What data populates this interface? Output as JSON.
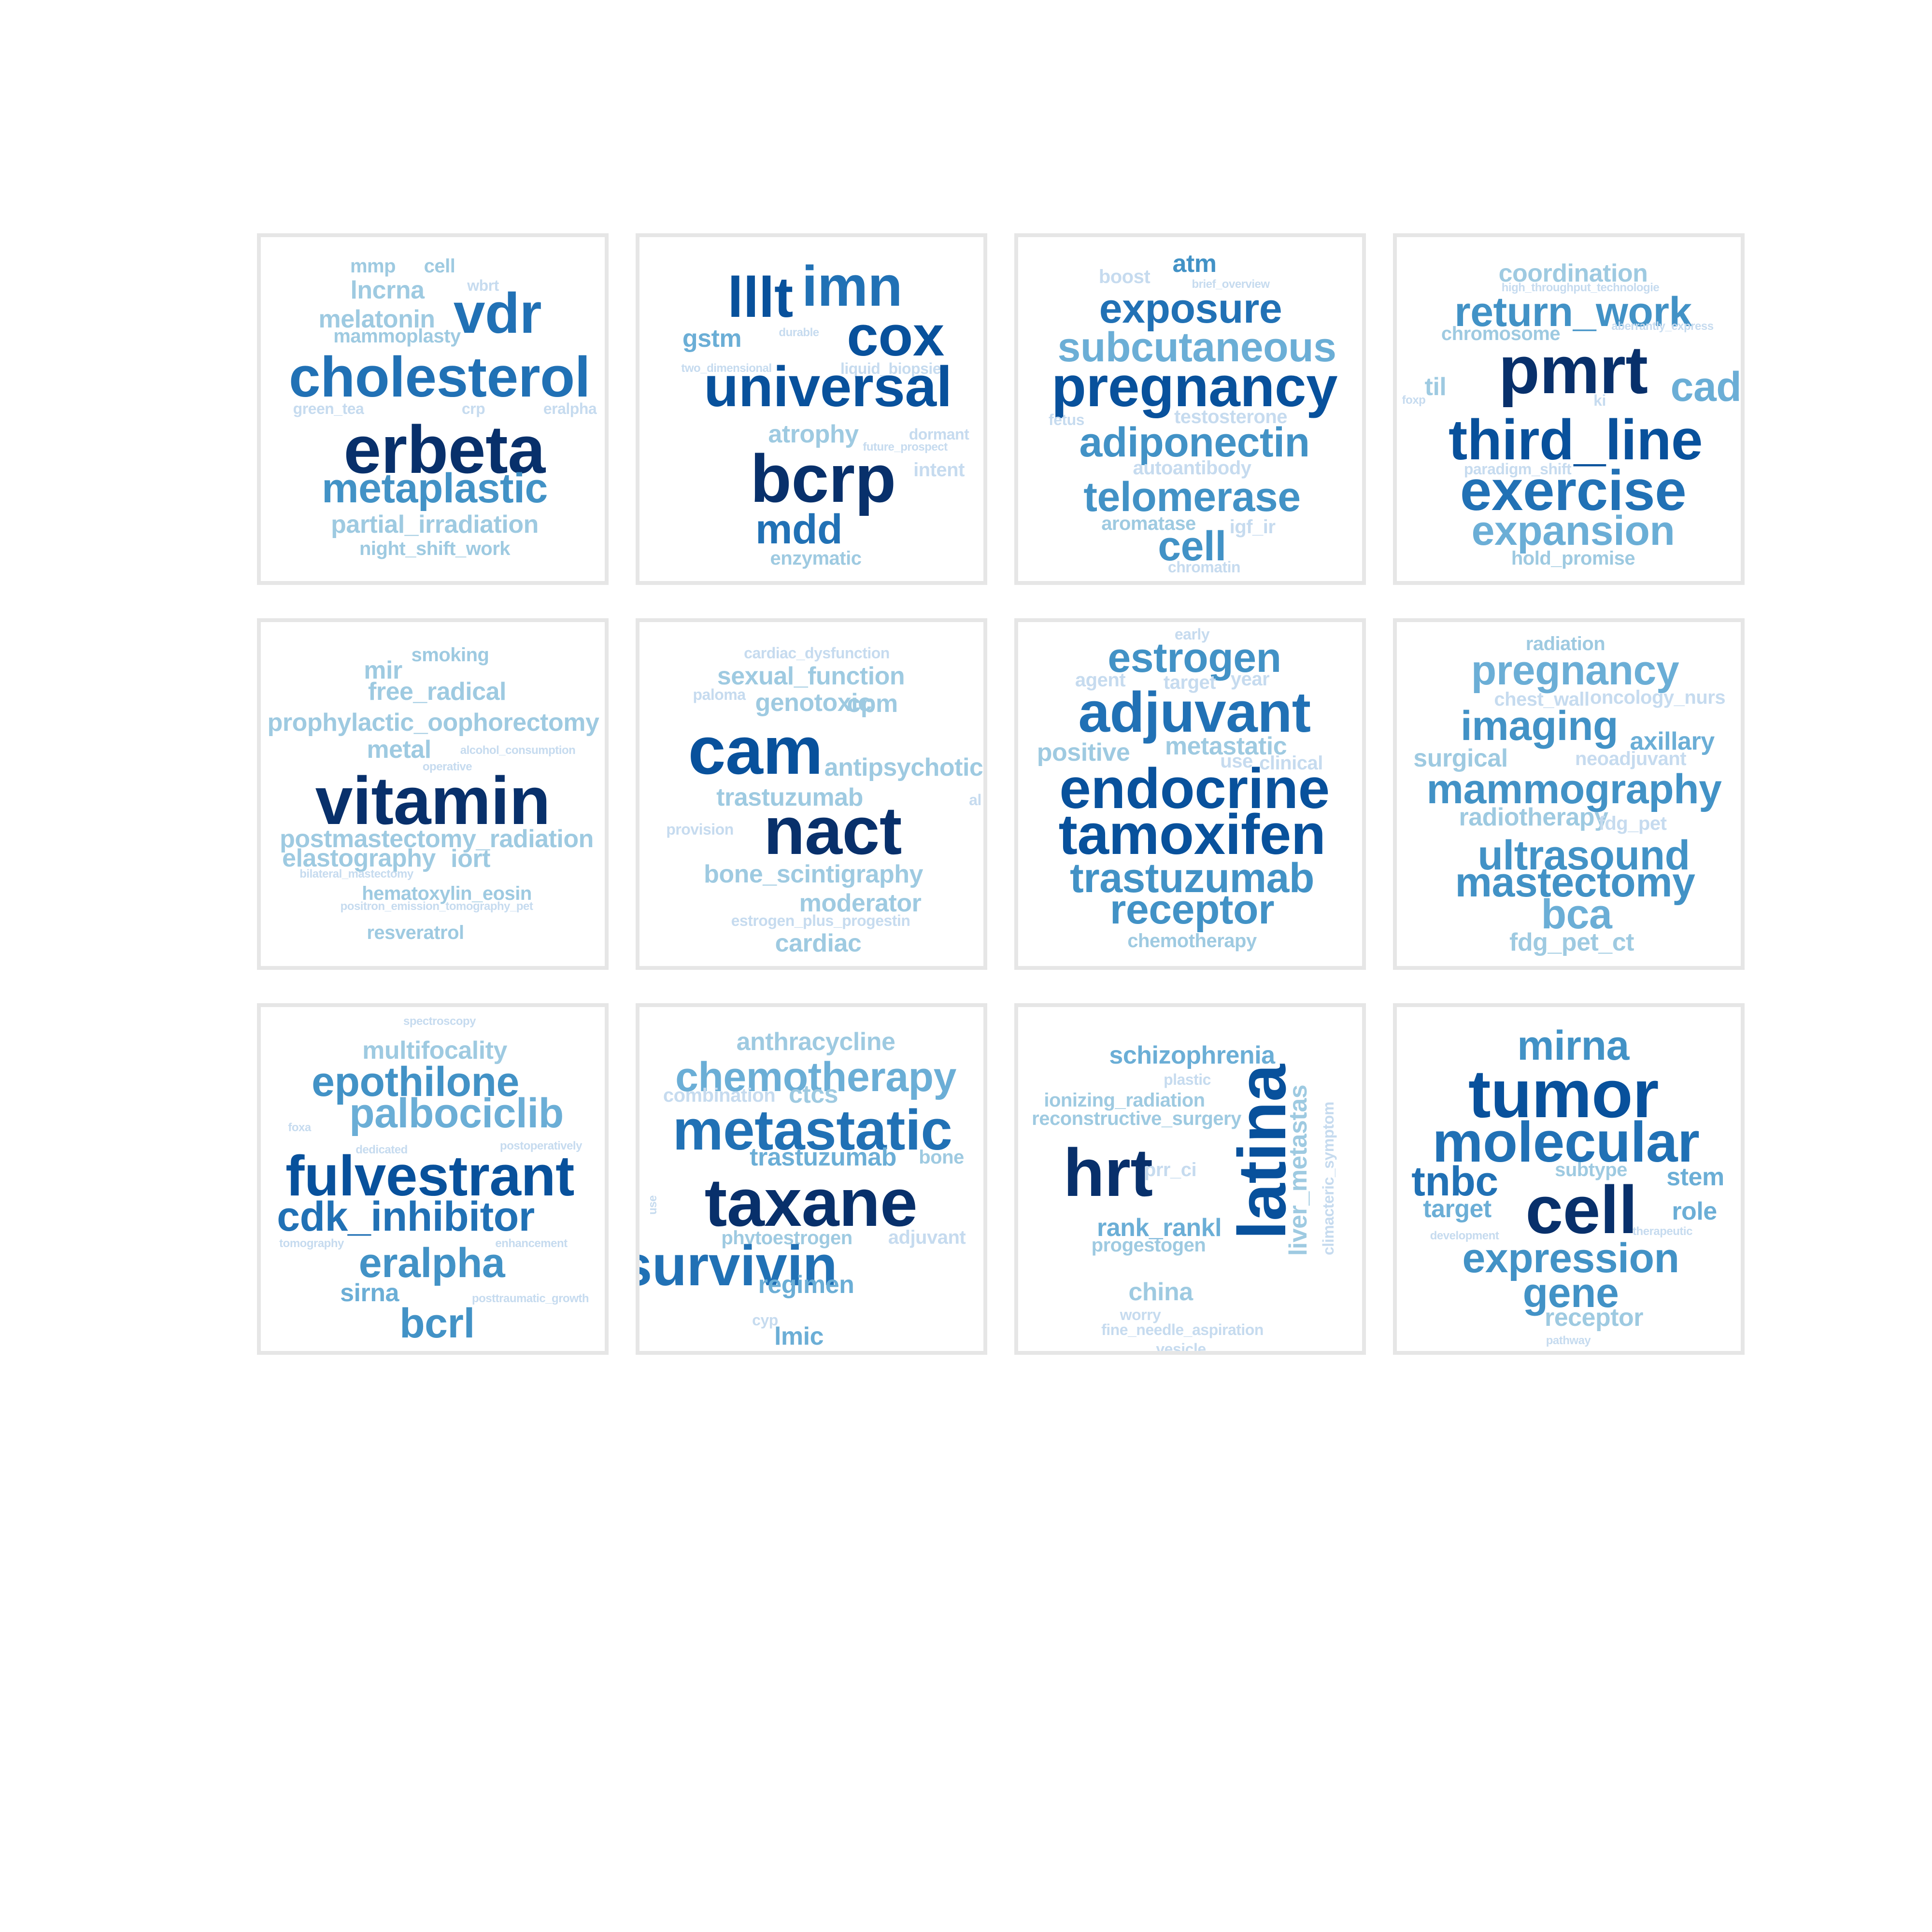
{
  "colors": {
    "c1": "#08306b",
    "c2": "#08519c",
    "c3": "#2171b5",
    "c4": "#4292c6",
    "c5": "#6baed6",
    "c6": "#9ecae1",
    "c7": "#c6dbef"
  },
  "panels": [
    {
      "words": [
        {
          "text": "mmp",
          "color": "c6",
          "size": "s"
        },
        {
          "text": "cell",
          "color": "c6",
          "size": "s"
        },
        {
          "text": "lncrna",
          "color": "c6",
          "size": "m"
        },
        {
          "text": "wbrt",
          "color": "c7",
          "size": "xs"
        },
        {
          "text": "vdr",
          "color": "c3",
          "size": "xl"
        },
        {
          "text": "melatonin",
          "color": "c6",
          "size": "m"
        },
        {
          "text": "mammoplasty",
          "color": "c6",
          "size": "s"
        },
        {
          "text": "cholesterol",
          "color": "c3",
          "size": "xl"
        },
        {
          "text": "green_tea",
          "color": "c7",
          "size": "xs"
        },
        {
          "text": "crp",
          "color": "c7",
          "size": "xs"
        },
        {
          "text": "eralpha",
          "color": "c7",
          "size": "xs"
        },
        {
          "text": "erbeta",
          "color": "c1",
          "size": "xxl"
        },
        {
          "text": "metaplastic",
          "color": "c4",
          "size": "l"
        },
        {
          "text": "partial_irradiation",
          "color": "c6",
          "size": "m"
        },
        {
          "text": "night_shift_work",
          "color": "c6",
          "size": "s"
        }
      ]
    },
    {
      "words": [
        {
          "text": "lllt",
          "color": "c2",
          "size": "xl"
        },
        {
          "text": "imn",
          "color": "c3",
          "size": "xl"
        },
        {
          "text": "cox",
          "color": "c2",
          "size": "xl"
        },
        {
          "text": "gstm",
          "color": "c5",
          "size": "m"
        },
        {
          "text": "durable",
          "color": "c7",
          "size": "xxs"
        },
        {
          "text": "two_dimensional",
          "color": "c7",
          "size": "xxs"
        },
        {
          "text": "liquid_biopsie",
          "color": "c7",
          "size": "xs"
        },
        {
          "text": "universal",
          "color": "c2",
          "size": "xl"
        },
        {
          "text": "atrophy",
          "color": "c6",
          "size": "m"
        },
        {
          "text": "dormant",
          "color": "c7",
          "size": "xs"
        },
        {
          "text": "future_prospect",
          "color": "c7",
          "size": "xxs"
        },
        {
          "text": "intent",
          "color": "c7",
          "size": "s"
        },
        {
          "text": "bcrp",
          "color": "c1",
          "size": "xxl"
        },
        {
          "text": "mdd",
          "color": "c3",
          "size": "l"
        },
        {
          "text": "enzymatic",
          "color": "c6",
          "size": "s"
        }
      ]
    },
    {
      "words": [
        {
          "text": "atm",
          "color": "c4",
          "size": "m"
        },
        {
          "text": "boost",
          "color": "c7",
          "size": "s"
        },
        {
          "text": "brief_overview",
          "color": "c7",
          "size": "xxs"
        },
        {
          "text": "exposure",
          "color": "c3",
          "size": "l"
        },
        {
          "text": "subcutaneous",
          "color": "c5",
          "size": "l"
        },
        {
          "text": "pregnancy",
          "color": "c2",
          "size": "xl"
        },
        {
          "text": "fetus",
          "color": "c7",
          "size": "xs"
        },
        {
          "text": "testosterone",
          "color": "c7",
          "size": "s"
        },
        {
          "text": "adiponectin",
          "color": "c4",
          "size": "l"
        },
        {
          "text": "autoantibody",
          "color": "c7",
          "size": "s"
        },
        {
          "text": "telomerase",
          "color": "c4",
          "size": "l"
        },
        {
          "text": "aromatase",
          "color": "c6",
          "size": "s"
        },
        {
          "text": "igf_ir",
          "color": "c7",
          "size": "s"
        },
        {
          "text": "cell",
          "color": "c4",
          "size": "l"
        },
        {
          "text": "chromatin",
          "color": "c7",
          "size": "xs"
        }
      ]
    },
    {
      "words": [
        {
          "text": "coordination",
          "color": "c6",
          "size": "m"
        },
        {
          "text": "high_throughput_technologie",
          "color": "c7",
          "size": "xxs"
        },
        {
          "text": "return_work",
          "color": "c4",
          "size": "l"
        },
        {
          "text": "chromosome",
          "color": "c6",
          "size": "s"
        },
        {
          "text": "aberrantly_express",
          "color": "c7",
          "size": "xxs"
        },
        {
          "text": "pmrt",
          "color": "c1",
          "size": "xxl"
        },
        {
          "text": "til",
          "color": "c6",
          "size": "m"
        },
        {
          "text": "cad",
          "color": "c5",
          "size": "l"
        },
        {
          "text": "foxp",
          "color": "c7",
          "size": "xxs"
        },
        {
          "text": "ki",
          "color": "c7",
          "size": "xs"
        },
        {
          "text": "third_line",
          "color": "c2",
          "size": "xl"
        },
        {
          "text": "paradigm_shift",
          "color": "c7",
          "size": "xs"
        },
        {
          "text": "exercise",
          "color": "c3",
          "size": "xl"
        },
        {
          "text": "expansion",
          "color": "c5",
          "size": "l"
        },
        {
          "text": "hold_promise",
          "color": "c6",
          "size": "s"
        }
      ]
    },
    {
      "words": [
        {
          "text": "smoking",
          "color": "c6",
          "size": "s"
        },
        {
          "text": "mir",
          "color": "c6",
          "size": "m"
        },
        {
          "text": "free_radical",
          "color": "c6",
          "size": "m"
        },
        {
          "text": "prophylactic_oophorectomy",
          "color": "c6",
          "size": "m"
        },
        {
          "text": "metal",
          "color": "c6",
          "size": "m"
        },
        {
          "text": "alcohol_consumption",
          "color": "c7",
          "size": "xxs"
        },
        {
          "text": "operative",
          "color": "c7",
          "size": "xxs"
        },
        {
          "text": "vitamin",
          "color": "c1",
          "size": "xxl"
        },
        {
          "text": "postmastectomy_radiation",
          "color": "c6",
          "size": "m"
        },
        {
          "text": "elastography",
          "color": "c6",
          "size": "m"
        },
        {
          "text": "iort",
          "color": "c6",
          "size": "m"
        },
        {
          "text": "bilateral_mastectomy",
          "color": "c7",
          "size": "xxs"
        },
        {
          "text": "hematoxylin_eosin",
          "color": "c6",
          "size": "s"
        },
        {
          "text": "positron_emission_tomography_pet",
          "color": "c7",
          "size": "xxs"
        },
        {
          "text": "resveratrol",
          "color": "c6",
          "size": "s"
        }
      ]
    },
    {
      "words": [
        {
          "text": "cardiac_dysfunction",
          "color": "c7",
          "size": "xs"
        },
        {
          "text": "sexual_function",
          "color": "c6",
          "size": "m"
        },
        {
          "text": "paloma",
          "color": "c7",
          "size": "xs"
        },
        {
          "text": "genotoxic",
          "color": "c6",
          "size": "m"
        },
        {
          "text": "cpm",
          "color": "c6",
          "size": "m"
        },
        {
          "text": "cam",
          "color": "c2",
          "size": "xxl"
        },
        {
          "text": "antipsychotic",
          "color": "c6",
          "size": "m"
        },
        {
          "text": "trastuzumab",
          "color": "c6",
          "size": "m"
        },
        {
          "text": "al",
          "color": "c7",
          "size": "xs"
        },
        {
          "text": "provision",
          "color": "c7",
          "size": "xs"
        },
        {
          "text": "nact",
          "color": "c1",
          "size": "xxl"
        },
        {
          "text": "bone_scintigraphy",
          "color": "c6",
          "size": "m"
        },
        {
          "text": "moderator",
          "color": "c6",
          "size": "m"
        },
        {
          "text": "estrogen_plus_progestin",
          "color": "c7",
          "size": "xs"
        },
        {
          "text": "cardiac",
          "color": "c6",
          "size": "m"
        }
      ]
    },
    {
      "words": [
        {
          "text": "early",
          "color": "c7",
          "size": "xs"
        },
        {
          "text": "estrogen",
          "color": "c4",
          "size": "l"
        },
        {
          "text": "agent",
          "color": "c7",
          "size": "s"
        },
        {
          "text": "target",
          "color": "c7",
          "size": "s"
        },
        {
          "text": "year",
          "color": "c7",
          "size": "s"
        },
        {
          "text": "adjuvant",
          "color": "c3",
          "size": "xl"
        },
        {
          "text": "positive",
          "color": "c6",
          "size": "m"
        },
        {
          "text": "metastatic",
          "color": "c6",
          "size": "m"
        },
        {
          "text": "use",
          "color": "c7",
          "size": "s"
        },
        {
          "text": "clinical",
          "color": "c7",
          "size": "s"
        },
        {
          "text": "endocrine",
          "color": "c2",
          "size": "xl"
        },
        {
          "text": "tamoxifen",
          "color": "c2",
          "size": "xl"
        },
        {
          "text": "trastuzumab",
          "color": "c4",
          "size": "l"
        },
        {
          "text": "receptor",
          "color": "c4",
          "size": "l"
        },
        {
          "text": "chemotherapy",
          "color": "c6",
          "size": "s"
        }
      ]
    },
    {
      "words": [
        {
          "text": "radiation",
          "color": "c6",
          "size": "s"
        },
        {
          "text": "pregnancy",
          "color": "c5",
          "size": "l"
        },
        {
          "text": "chest_wall",
          "color": "c7",
          "size": "s"
        },
        {
          "text": "oncology_nurs",
          "color": "c7",
          "size": "s"
        },
        {
          "text": "imaging",
          "color": "c4",
          "size": "l"
        },
        {
          "text": "axillary",
          "color": "c5",
          "size": "m"
        },
        {
          "text": "surgical",
          "color": "c6",
          "size": "m"
        },
        {
          "text": "neoadjuvant",
          "color": "c7",
          "size": "s"
        },
        {
          "text": "mammography",
          "color": "c4",
          "size": "l"
        },
        {
          "text": "radiotherapy",
          "color": "c6",
          "size": "m"
        },
        {
          "text": "fdg_pet",
          "color": "c7",
          "size": "s"
        },
        {
          "text": "ultrasound",
          "color": "c4",
          "size": "l"
        },
        {
          "text": "mastectomy",
          "color": "c4",
          "size": "l"
        },
        {
          "text": "bca",
          "color": "c5",
          "size": "l"
        },
        {
          "text": "fdg_pet_ct",
          "color": "c6",
          "size": "m"
        }
      ]
    },
    {
      "words": [
        {
          "text": "spectroscopy",
          "color": "c7",
          "size": "xxs"
        },
        {
          "text": "multifocality",
          "color": "c6",
          "size": "m"
        },
        {
          "text": "epothilone",
          "color": "c4",
          "size": "l"
        },
        {
          "text": "palbociclib",
          "color": "c5",
          "size": "l"
        },
        {
          "text": "foxa",
          "color": "c7",
          "size": "xxs"
        },
        {
          "text": "dedicated",
          "color": "c7",
          "size": "xxs"
        },
        {
          "text": "postoperatively",
          "color": "c7",
          "size": "xxs"
        },
        {
          "text": "fulvestrant",
          "color": "c2",
          "size": "xl"
        },
        {
          "text": "cdk_inhibitor",
          "color": "c3",
          "size": "l"
        },
        {
          "text": "tomography",
          "color": "c7",
          "size": "xxs"
        },
        {
          "text": "enhancement",
          "color": "c7",
          "size": "xxs"
        },
        {
          "text": "eralpha",
          "color": "c4",
          "size": "l"
        },
        {
          "text": "sirna",
          "color": "c5",
          "size": "m"
        },
        {
          "text": "posttraumatic_growth",
          "color": "c7",
          "size": "xxs"
        },
        {
          "text": "bcrl",
          "color": "c4",
          "size": "l"
        }
      ]
    },
    {
      "words": [
        {
          "text": "anthracycline",
          "color": "c6",
          "size": "m"
        },
        {
          "text": "chemotherapy",
          "color": "c5",
          "size": "l"
        },
        {
          "text": "combination",
          "color": "c7",
          "size": "s"
        },
        {
          "text": "ctcs",
          "color": "c6",
          "size": "m"
        },
        {
          "text": "metastatic",
          "color": "c3",
          "size": "xl"
        },
        {
          "text": "trastuzumab",
          "color": "c5",
          "size": "m"
        },
        {
          "text": "bone",
          "color": "c6",
          "size": "s"
        },
        {
          "text": "use",
          "color": "c7",
          "size": "xxs",
          "vertical": true
        },
        {
          "text": "taxane",
          "color": "c1",
          "size": "xxl"
        },
        {
          "text": "phytoestrogen",
          "color": "c6",
          "size": "s"
        },
        {
          "text": "adjuvant",
          "color": "c7",
          "size": "s"
        },
        {
          "text": "survivin",
          "color": "c3",
          "size": "xl"
        },
        {
          "text": "regimen",
          "color": "c5",
          "size": "m"
        },
        {
          "text": "cyp",
          "color": "c7",
          "size": "xs"
        },
        {
          "text": "lmic",
          "color": "c5",
          "size": "m"
        }
      ]
    },
    {
      "words": [
        {
          "text": "schizophrenia",
          "color": "c5",
          "size": "m"
        },
        {
          "text": "plastic",
          "color": "c7",
          "size": "xs"
        },
        {
          "text": "ionizing_radiation",
          "color": "c6",
          "size": "s"
        },
        {
          "text": "reconstructive_surgery",
          "color": "c6",
          "size": "s"
        },
        {
          "text": "latina",
          "color": "c2",
          "size": "xxl",
          "vertical": true
        },
        {
          "text": "liver_metastas",
          "color": "c6",
          "size": "m",
          "vertical": true
        },
        {
          "text": "climacteric_symptom",
          "color": "c7",
          "size": "xs",
          "vertical": true
        },
        {
          "text": "hrt",
          "color": "c1",
          "size": "xxl"
        },
        {
          "text": "prr_ci",
          "color": "c7",
          "size": "s"
        },
        {
          "text": "rank_rankl",
          "color": "c5",
          "size": "m"
        },
        {
          "text": "progestogen",
          "color": "c6",
          "size": "s"
        },
        {
          "text": "china",
          "color": "c6",
          "size": "m"
        },
        {
          "text": "worry",
          "color": "c7",
          "size": "xs"
        },
        {
          "text": "fine_needle_aspiration",
          "color": "c7",
          "size": "xs"
        },
        {
          "text": "vesicle",
          "color": "c7",
          "size": "xs"
        }
      ]
    },
    {
      "words": [
        {
          "text": "mirna",
          "color": "c4",
          "size": "l"
        },
        {
          "text": "tumor",
          "color": "c2",
          "size": "xxl"
        },
        {
          "text": "molecular",
          "color": "c3",
          "size": "xl"
        },
        {
          "text": "tnbc",
          "color": "c3",
          "size": "l"
        },
        {
          "text": "subtype",
          "color": "c6",
          "size": "s"
        },
        {
          "text": "stem",
          "color": "c5",
          "size": "m"
        },
        {
          "text": "target",
          "color": "c5",
          "size": "m"
        },
        {
          "text": "cell",
          "color": "c1",
          "size": "xxl"
        },
        {
          "text": "role",
          "color": "c5",
          "size": "m"
        },
        {
          "text": "development",
          "color": "c7",
          "size": "xxs"
        },
        {
          "text": "therapeutic",
          "color": "c7",
          "size": "xxs"
        },
        {
          "text": "expression",
          "color": "c4",
          "size": "l"
        },
        {
          "text": "gene",
          "color": "c4",
          "size": "l"
        },
        {
          "text": "receptor",
          "color": "c6",
          "size": "m"
        },
        {
          "text": "pathway",
          "color": "c7",
          "size": "xxs"
        }
      ]
    }
  ]
}
